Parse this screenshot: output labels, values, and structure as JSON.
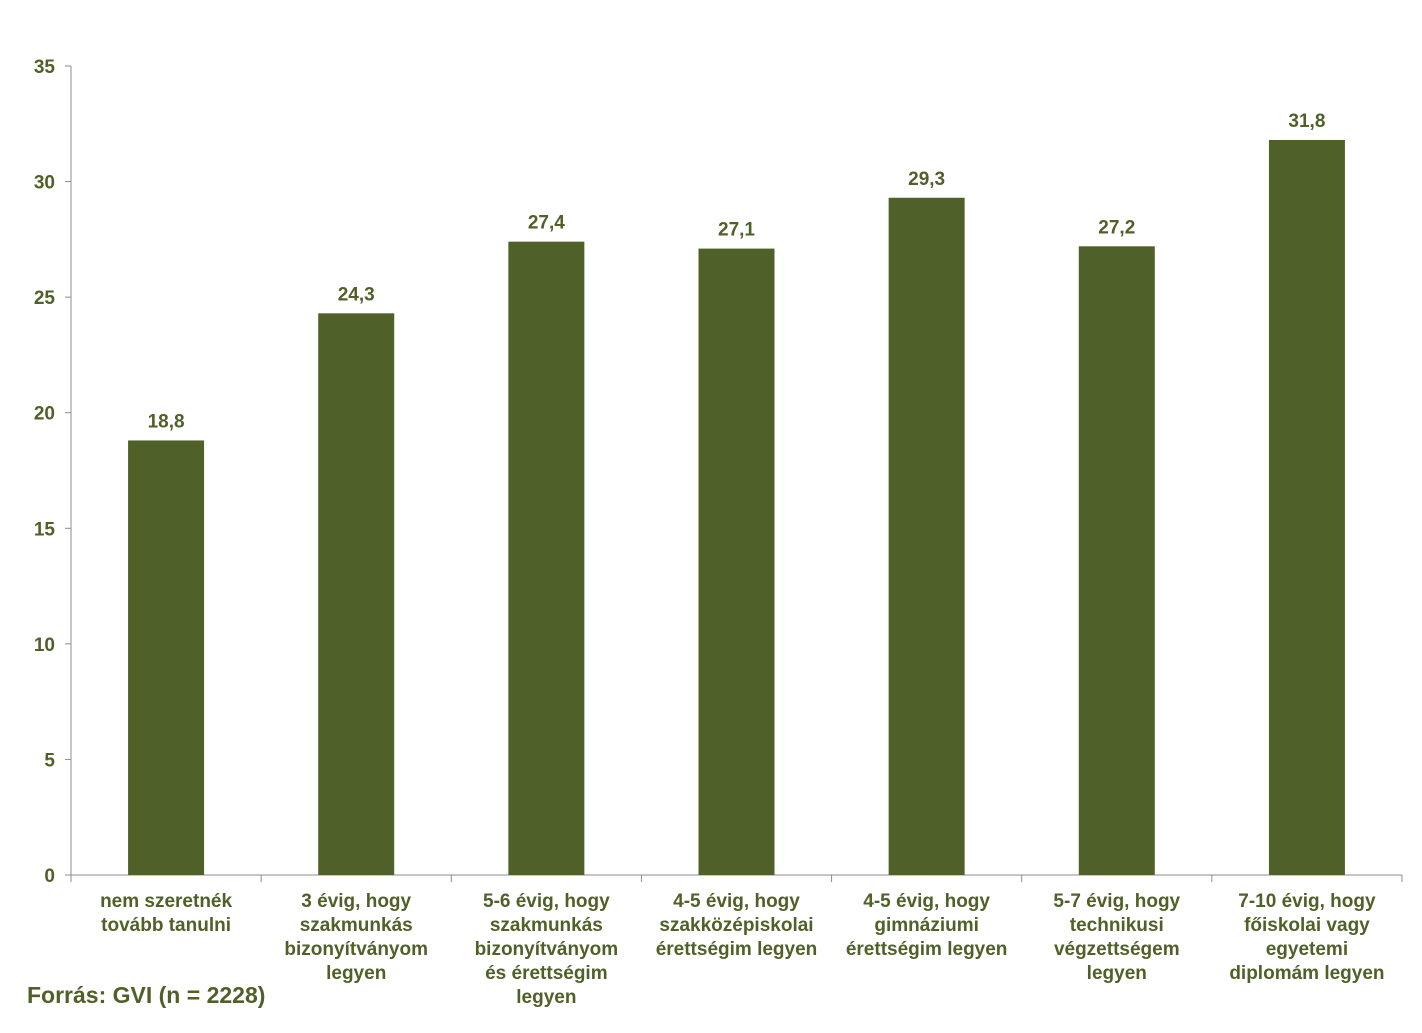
{
  "source_note": "Forrás: GVI (n = 2228)",
  "colors": {
    "bar": "#4f6128",
    "text": "#4f6128",
    "axis": "#8c8c8c"
  },
  "chart_data": {
    "type": "bar",
    "title": "",
    "xlabel": "",
    "ylabel": "",
    "ylim": [
      0,
      35
    ],
    "yticks": [
      0,
      5,
      10,
      15,
      20,
      25,
      30,
      35
    ],
    "grid": false,
    "legend": "none",
    "categories": [
      [
        "nem szeretnék",
        "tovább tanulni"
      ],
      [
        "3 évig, hogy",
        "szakmunkás",
        "bizonyítványom",
        "legyen"
      ],
      [
        "5-6 évig, hogy",
        "szakmunkás",
        "bizonyítványom",
        "és érettségim",
        "legyen"
      ],
      [
        "4-5 évig, hogy",
        "szakközépiskolai",
        "érettségim legyen"
      ],
      [
        "4-5 évig, hogy",
        "gimnáziumi",
        "érettségim legyen"
      ],
      [
        "5-7 évig, hogy",
        "technikusi",
        "végzettségem",
        "legyen"
      ],
      [
        "7-10 évig, hogy",
        "főiskolai vagy",
        "egyetemi",
        "diplomám legyen"
      ]
    ],
    "values": [
      18.8,
      24.3,
      27.4,
      27.1,
      29.3,
      27.2,
      31.8
    ],
    "value_labels": [
      "18,8",
      "24,3",
      "27,4",
      "27,1",
      "29,3",
      "27,2",
      "31,8"
    ]
  }
}
